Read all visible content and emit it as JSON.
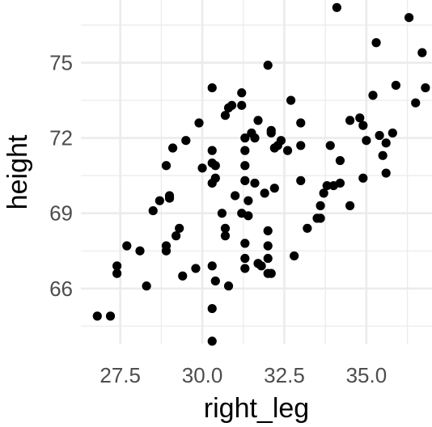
{
  "chart_data": {
    "type": "scatter",
    "xlabel": "right_leg",
    "ylabel": "height",
    "xlim": [
      26.3,
      37.0
    ],
    "ylim": [
      63.8,
      77.5
    ],
    "x_ticks": [
      27.5,
      30.0,
      32.5,
      35.0
    ],
    "x_tick_labels": [
      "27.5",
      "30.0",
      "32.5",
      "35.0"
    ],
    "y_ticks": [
      66,
      69,
      72,
      75
    ],
    "y_tick_labels": [
      "66",
      "69",
      "72",
      "75"
    ],
    "grid": true,
    "legend": "none",
    "point_color": "#000000",
    "background": "#ffffff",
    "grid_color": "#ebebeb",
    "points": [
      {
        "x": 26.8,
        "y": 64.9
      },
      {
        "x": 27.2,
        "y": 64.9
      },
      {
        "x": 27.4,
        "y": 66.6
      },
      {
        "x": 27.4,
        "y": 66.9
      },
      {
        "x": 27.7,
        "y": 67.7
      },
      {
        "x": 28.1,
        "y": 67.5
      },
      {
        "x": 28.3,
        "y": 66.1
      },
      {
        "x": 28.5,
        "y": 69.1
      },
      {
        "x": 28.7,
        "y": 69.5
      },
      {
        "x": 28.9,
        "y": 67.5
      },
      {
        "x": 28.9,
        "y": 67.7
      },
      {
        "x": 28.9,
        "y": 70.9
      },
      {
        "x": 29.0,
        "y": 69.6
      },
      {
        "x": 29.0,
        "y": 69.7
      },
      {
        "x": 29.1,
        "y": 71.6
      },
      {
        "x": 29.2,
        "y": 68.1
      },
      {
        "x": 29.3,
        "y": 68.4
      },
      {
        "x": 29.4,
        "y": 66.5
      },
      {
        "x": 29.5,
        "y": 71.9
      },
      {
        "x": 29.8,
        "y": 66.8
      },
      {
        "x": 29.9,
        "y": 72.6
      },
      {
        "x": 30.0,
        "y": 70.8
      },
      {
        "x": 30.3,
        "y": 70.2
      },
      {
        "x": 30.3,
        "y": 71.5
      },
      {
        "x": 30.3,
        "y": 71.0
      },
      {
        "x": 30.3,
        "y": 74.0
      },
      {
        "x": 30.4,
        "y": 70.4
      },
      {
        "x": 30.4,
        "y": 70.9
      },
      {
        "x": 30.3,
        "y": 66.9
      },
      {
        "x": 30.4,
        "y": 66.3
      },
      {
        "x": 30.3,
        "y": 65.2
      },
      {
        "x": 30.3,
        "y": 63.9
      },
      {
        "x": 30.6,
        "y": 69.0
      },
      {
        "x": 30.7,
        "y": 68.4
      },
      {
        "x": 30.7,
        "y": 68.1
      },
      {
        "x": 30.8,
        "y": 66.1
      },
      {
        "x": 30.7,
        "y": 72.9
      },
      {
        "x": 30.8,
        "y": 73.2
      },
      {
        "x": 30.9,
        "y": 73.3
      },
      {
        "x": 31.0,
        "y": 69.7
      },
      {
        "x": 31.2,
        "y": 73.8
      },
      {
        "x": 31.2,
        "y": 73.3
      },
      {
        "x": 31.2,
        "y": 69.0
      },
      {
        "x": 31.3,
        "y": 72.0
      },
      {
        "x": 31.3,
        "y": 71.5
      },
      {
        "x": 31.3,
        "y": 70.9
      },
      {
        "x": 31.3,
        "y": 70.3
      },
      {
        "x": 31.3,
        "y": 67.8
      },
      {
        "x": 31.3,
        "y": 67.2
      },
      {
        "x": 31.3,
        "y": 66.8
      },
      {
        "x": 31.4,
        "y": 68.9
      },
      {
        "x": 31.4,
        "y": 69.5
      },
      {
        "x": 31.5,
        "y": 72.2
      },
      {
        "x": 31.6,
        "y": 72.0
      },
      {
        "x": 31.6,
        "y": 70.2
      },
      {
        "x": 31.7,
        "y": 72.7
      },
      {
        "x": 31.7,
        "y": 67.0
      },
      {
        "x": 31.8,
        "y": 66.9
      },
      {
        "x": 31.9,
        "y": 69.8
      },
      {
        "x": 32.0,
        "y": 74.9
      },
      {
        "x": 32.0,
        "y": 68.3
      },
      {
        "x": 32.0,
        "y": 67.7
      },
      {
        "x": 32.0,
        "y": 67.2
      },
      {
        "x": 32.0,
        "y": 66.6
      },
      {
        "x": 32.1,
        "y": 66.6
      },
      {
        "x": 32.1,
        "y": 72.2
      },
      {
        "x": 32.1,
        "y": 72.3
      },
      {
        "x": 32.2,
        "y": 70.0
      },
      {
        "x": 32.2,
        "y": 71.6
      },
      {
        "x": 32.3,
        "y": 71.7
      },
      {
        "x": 32.4,
        "y": 71.9
      },
      {
        "x": 32.6,
        "y": 71.5
      },
      {
        "x": 32.7,
        "y": 73.5
      },
      {
        "x": 32.8,
        "y": 67.3
      },
      {
        "x": 33.0,
        "y": 71.7
      },
      {
        "x": 33.0,
        "y": 70.3
      },
      {
        "x": 33.0,
        "y": 72.6
      },
      {
        "x": 33.2,
        "y": 68.4
      },
      {
        "x": 33.5,
        "y": 68.8
      },
      {
        "x": 33.6,
        "y": 69.3
      },
      {
        "x": 33.6,
        "y": 68.8
      },
      {
        "x": 33.7,
        "y": 69.8
      },
      {
        "x": 33.8,
        "y": 70.1
      },
      {
        "x": 33.9,
        "y": 71.7
      },
      {
        "x": 34.0,
        "y": 70.1
      },
      {
        "x": 34.1,
        "y": 77.2
      },
      {
        "x": 34.2,
        "y": 71.1
      },
      {
        "x": 34.2,
        "y": 70.2
      },
      {
        "x": 34.5,
        "y": 69.3
      },
      {
        "x": 34.5,
        "y": 72.7
      },
      {
        "x": 34.8,
        "y": 72.8
      },
      {
        "x": 34.9,
        "y": 72.5
      },
      {
        "x": 34.9,
        "y": 70.4
      },
      {
        "x": 35.0,
        "y": 71.9
      },
      {
        "x": 35.2,
        "y": 73.7
      },
      {
        "x": 35.3,
        "y": 75.8
      },
      {
        "x": 35.4,
        "y": 72.1
      },
      {
        "x": 35.5,
        "y": 71.3
      },
      {
        "x": 35.6,
        "y": 70.6
      },
      {
        "x": 35.6,
        "y": 71.8
      },
      {
        "x": 35.8,
        "y": 72.2
      },
      {
        "x": 35.9,
        "y": 74.1
      },
      {
        "x": 36.3,
        "y": 76.8
      },
      {
        "x": 36.5,
        "y": 73.4
      },
      {
        "x": 36.7,
        "y": 75.4
      },
      {
        "x": 36.8,
        "y": 74.0
      }
    ]
  }
}
